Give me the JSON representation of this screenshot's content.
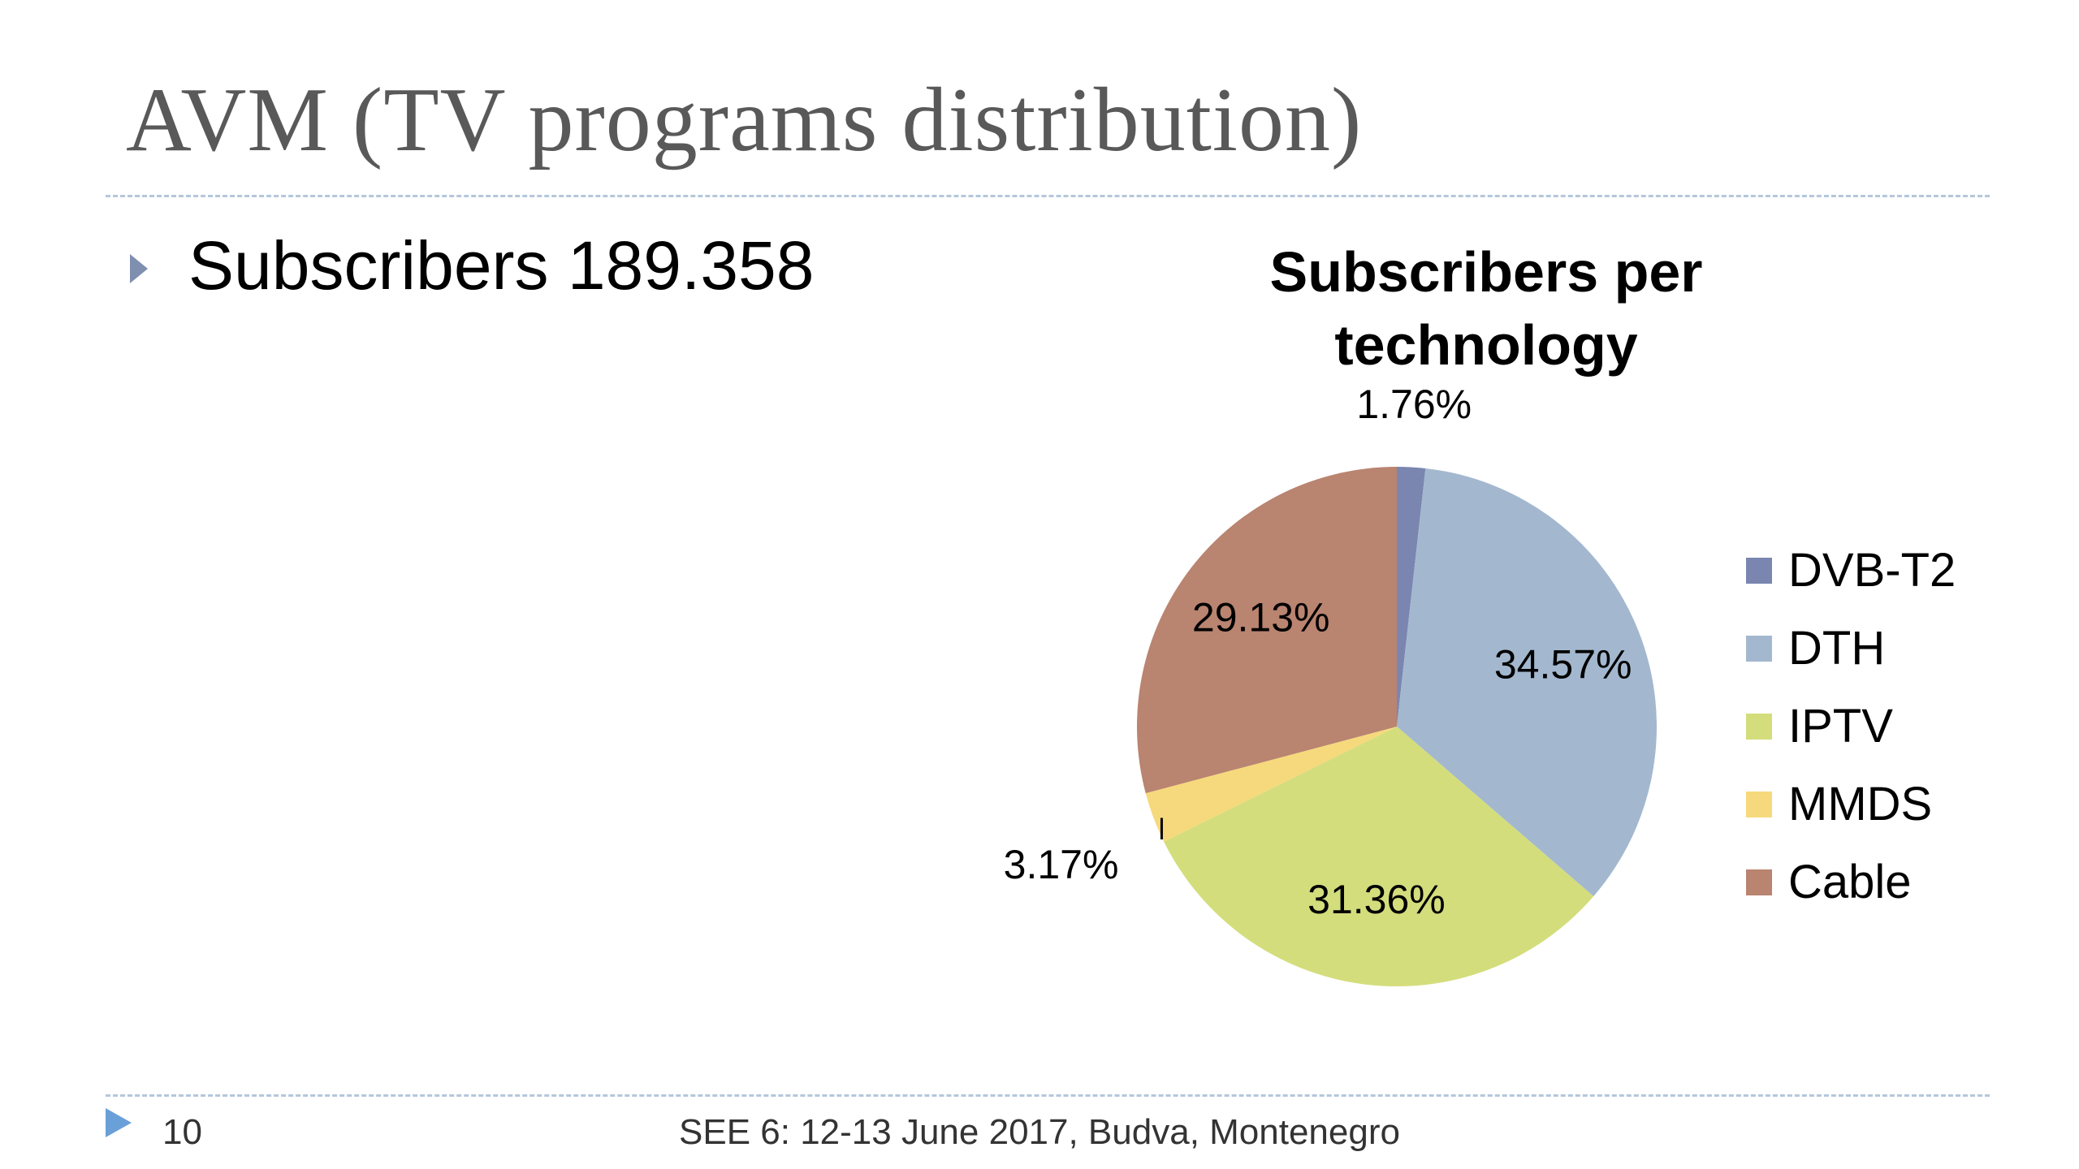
{
  "slide": {
    "title": "AVM (TV programs distribution)",
    "bullet": "Subscribers 189.358",
    "footer": {
      "page_number": "10",
      "text": "SEE 6: 12-13 June 2017, Budva, Montenegro"
    },
    "colors": {
      "title": "#595959",
      "divider": "#b4c7dc",
      "bullet_arrow": "#7f8fb0",
      "footer_arrow": "#6aa0d8"
    }
  },
  "chart_data": {
    "type": "pie",
    "title": "Subscribers per technology",
    "legend_position": "right",
    "series": [
      {
        "name": "DVB-T2",
        "value": 1.76,
        "label": "1.76%",
        "color": "#7a86b0"
      },
      {
        "name": "DTH",
        "value": 34.57,
        "label": "34.57%",
        "color": "#a3b8cf"
      },
      {
        "name": "IPTV",
        "value": 31.36,
        "label": "31.36%",
        "color": "#d4dd7c"
      },
      {
        "name": "MMDS",
        "value": 3.17,
        "label": "3.17%",
        "color": "#f6d97c"
      },
      {
        "name": "Cable",
        "value": 29.13,
        "label": "29.13%",
        "color": "#b98470"
      }
    ]
  }
}
